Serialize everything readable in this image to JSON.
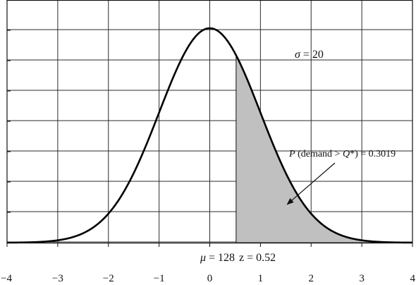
{
  "chart_data": {
    "type": "area",
    "distribution": "normal",
    "x_axis": {
      "ticks": [
        -4,
        -3,
        -2,
        -1,
        0,
        1,
        2,
        3,
        4
      ],
      "tick_labels": [
        "−4",
        "−3",
        "−2",
        "−1",
        "0",
        "1",
        "2",
        "3",
        "4"
      ],
      "xlim": [
        -4,
        4
      ]
    },
    "y_axis": {
      "tick_count": 9,
      "tick_labels_shown": false
    },
    "grid": true,
    "curve": {
      "mean_z": 0,
      "sd_z": 1,
      "peak_y": 1.0
    },
    "shaded_region": {
      "from_z": 0.52,
      "to_z": 4,
      "color": "#c0c0c0"
    },
    "annotations": {
      "sigma_symbol": "σ",
      "sigma_value": " = 20",
      "mu_symbol": "μ",
      "mu_value": " = 128",
      "z_label": "z = 0.52",
      "prob_p": "P",
      "prob_mid": " (demand > ",
      "prob_q": "Q",
      "prob_end": "*) = 0.3019",
      "prob_arrow_target_z": 1.5
    },
    "colors": {
      "curve": "#000000",
      "grid": "#2b2b2b",
      "shade": "#c0c0c0"
    }
  }
}
